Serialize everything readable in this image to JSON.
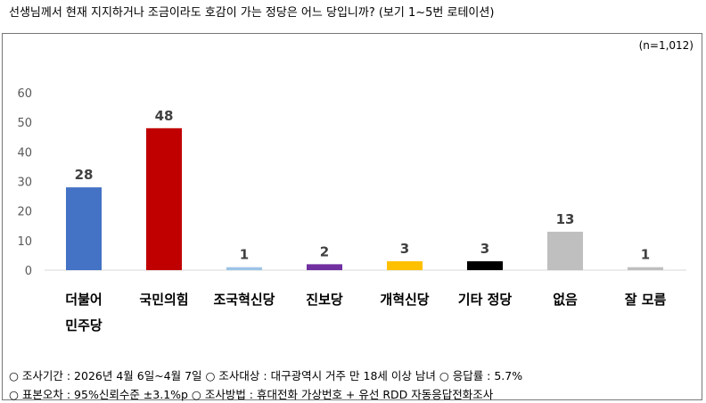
{
  "question": "선생님께서 현재 지지하거나 조금이라도 호감이 가는 정당은 어느 당입니까? (보기 1~5번 로테이션)",
  "sample": "(n=1,012)",
  "chart_data": {
    "type": "bar",
    "categories": [
      [
        "더불어",
        "민주당"
      ],
      [
        "국민의힘"
      ],
      [
        "조국혁신당"
      ],
      [
        "진보당"
      ],
      [
        "개혁신당"
      ],
      [
        "기타 정당"
      ],
      [
        "없음"
      ],
      [
        "잘 모름"
      ]
    ],
    "values": [
      28,
      48,
      1,
      2,
      3,
      3,
      13,
      1
    ],
    "colors": [
      "#4472C4",
      "#C00000",
      "#9DC3E6",
      "#7030A0",
      "#FFC000",
      "#000000",
      "#BFBFBF",
      "#BFBFBF"
    ],
    "ylim": [
      0,
      60
    ],
    "yticks": [
      0,
      10,
      20,
      30,
      40,
      50,
      60
    ],
    "grid": false
  },
  "footer": {
    "line1": "○ 조사기간 : 2026년 4월 6일~4월 7일 ○ 조사대상 : 대구광역시 거주 만 18세 이상 남녀 ○ 응답률 : 5.7%",
    "line2": "○ 표본오차 : 95%신뢰수준 ±3.1%p ○ 조사방법 : 휴대전화 가상번호 + 유선 RDD 자동응답전화조사"
  }
}
